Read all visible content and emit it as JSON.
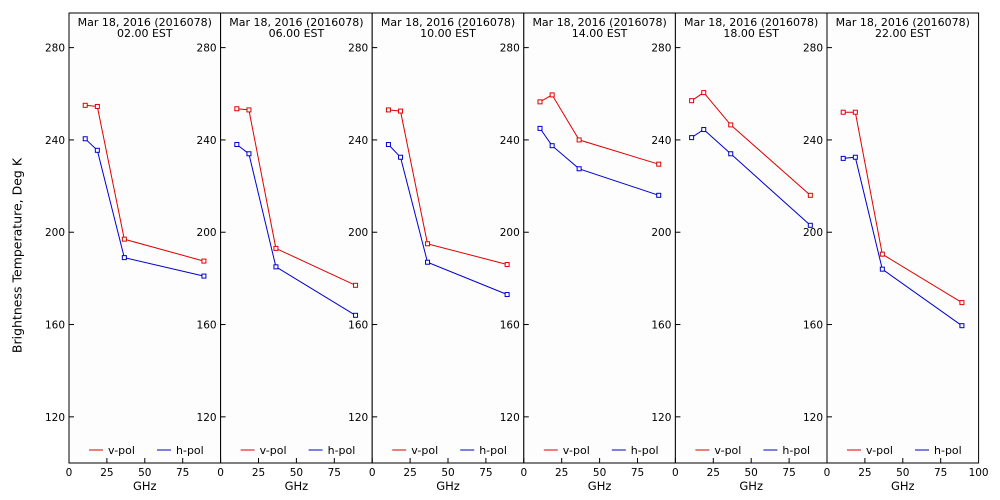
{
  "ylabel": "Brightness Temperature, Deg K",
  "chart_data": [
    {
      "type": "line",
      "title": "Mar 18, 2016 (2016078)",
      "subtitle": "02.00 EST",
      "xlabel": "GHz",
      "xlim": [
        0,
        100
      ],
      "ylim": [
        100,
        295
      ],
      "series": [
        {
          "name": "v-pol",
          "color": "#e00000",
          "x": [
            10.7,
            18.7,
            36.5,
            89.0
          ],
          "values": [
            255,
            254.5,
            197,
            187.5
          ]
        },
        {
          "name": "h-pol",
          "color": "#0000d0",
          "x": [
            10.7,
            18.7,
            36.5,
            89.0
          ],
          "values": [
            240.5,
            235.5,
            189,
            181
          ]
        }
      ]
    },
    {
      "type": "line",
      "title": "Mar 18, 2016 (2016078)",
      "subtitle": "06.00 EST",
      "xlabel": "GHz",
      "xlim": [
        0,
        100
      ],
      "ylim": [
        100,
        295
      ],
      "series": [
        {
          "name": "v-pol",
          "color": "#e00000",
          "x": [
            10.7,
            18.7,
            36.5,
            89.0
          ],
          "values": [
            253.5,
            253,
            193,
            177
          ]
        },
        {
          "name": "h-pol",
          "color": "#0000d0",
          "x": [
            10.7,
            18.7,
            36.5,
            89.0
          ],
          "values": [
            238,
            234,
            185,
            164
          ]
        }
      ]
    },
    {
      "type": "line",
      "title": "Mar 18, 2016 (2016078)",
      "subtitle": "10.00 EST",
      "xlabel": "GHz",
      "xlim": [
        0,
        100
      ],
      "ylim": [
        100,
        295
      ],
      "series": [
        {
          "name": "v-pol",
          "color": "#e00000",
          "x": [
            10.7,
            18.7,
            36.5,
            89.0
          ],
          "values": [
            253,
            252.5,
            195,
            186
          ]
        },
        {
          "name": "h-pol",
          "color": "#0000d0",
          "x": [
            10.7,
            18.7,
            36.5,
            89.0
          ],
          "values": [
            238,
            232.5,
            187,
            173
          ]
        }
      ]
    },
    {
      "type": "line",
      "title": "Mar 18, 2016 (2016078)",
      "subtitle": "14.00 EST",
      "xlabel": "GHz",
      "xlim": [
        0,
        100
      ],
      "ylim": [
        100,
        295
      ],
      "series": [
        {
          "name": "v-pol",
          "color": "#e00000",
          "x": [
            10.7,
            18.7,
            36.5,
            89.0
          ],
          "values": [
            256.5,
            259.5,
            240,
            229.5
          ]
        },
        {
          "name": "h-pol",
          "color": "#0000d0",
          "x": [
            10.7,
            18.7,
            36.5,
            89.0
          ],
          "values": [
            245,
            237.5,
            227.5,
            216
          ]
        }
      ]
    },
    {
      "type": "line",
      "title": "Mar 18, 2016 (2016078)",
      "subtitle": "18.00 EST",
      "xlabel": "GHz",
      "xlim": [
        0,
        100
      ],
      "ylim": [
        100,
        295
      ],
      "series": [
        {
          "name": "v-pol",
          "color": "#e00000",
          "x": [
            10.7,
            18.7,
            36.5,
            89.0
          ],
          "values": [
            257,
            260.5,
            246.5,
            216
          ]
        },
        {
          "name": "h-pol",
          "color": "#0000d0",
          "x": [
            10.7,
            18.7,
            36.5,
            89.0
          ],
          "values": [
            241,
            244.5,
            234,
            203
          ]
        }
      ]
    },
    {
      "type": "line",
      "title": "Mar 18, 2016 (2016078)",
      "subtitle": "22.00 EST",
      "xlabel": "GHz",
      "xlim": [
        0,
        100
      ],
      "ylim": [
        100,
        295
      ],
      "series": [
        {
          "name": "v-pol",
          "color": "#e00000",
          "x": [
            10.7,
            18.7,
            36.5,
            89.0
          ],
          "values": [
            252,
            252,
            190.5,
            169.5
          ]
        },
        {
          "name": "h-pol",
          "color": "#0000d0",
          "x": [
            10.7,
            18.7,
            36.5,
            89.0
          ],
          "values": [
            232,
            232.5,
            184,
            159.5
          ]
        }
      ]
    }
  ],
  "yticks": [
    120,
    160,
    200,
    240,
    280
  ],
  "xticks": [
    0,
    25,
    50,
    75
  ]
}
